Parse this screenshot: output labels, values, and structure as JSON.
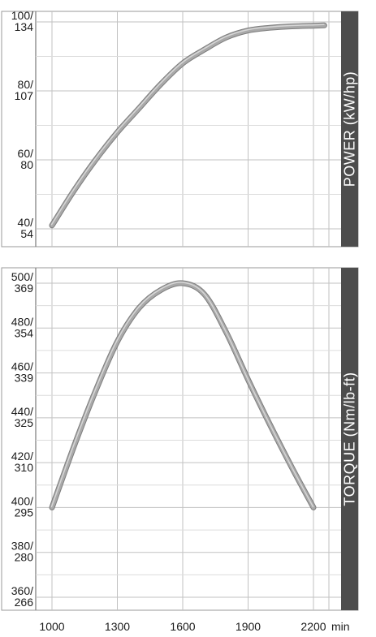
{
  "chart_data": [
    {
      "type": "line",
      "title": "",
      "ylabel": "POWER  (kW/hp)",
      "xlabel": "",
      "x_unit": "min",
      "x": [
        1000,
        1100,
        1200,
        1300,
        1400,
        1500,
        1600,
        1700,
        1800,
        1900,
        2000,
        2100,
        2200,
        2250
      ],
      "ylim": [
        38,
        101
      ],
      "y_ticks": [
        {
          "value": 40,
          "label": "40/",
          "label2": "54"
        },
        {
          "value": 60,
          "label": "60/",
          "label2": "80"
        },
        {
          "value": 80,
          "label": "80/",
          "label2": "107"
        },
        {
          "value": 100,
          "label": "100/",
          "label2": "134"
        }
      ],
      "grid": true,
      "series": [
        {
          "name": "",
          "color": "#a9a9a9",
          "values": [
            41,
            51,
            60,
            68,
            75,
            82,
            88,
            92,
            95.5,
            97.5,
            98.3,
            98.7,
            98.9,
            99
          ]
        }
      ]
    },
    {
      "type": "line",
      "title": "",
      "ylabel": "TORQUE  (Nm/lb-ft)",
      "xlabel": "",
      "x_unit": "min",
      "x": [
        1000,
        1100,
        1200,
        1300,
        1400,
        1500,
        1600,
        1700,
        1800,
        1900,
        2000,
        2100,
        2200
      ],
      "ylim": [
        357,
        501
      ],
      "y_ticks": [
        {
          "value": 360,
          "label": "360/",
          "label2": "266"
        },
        {
          "value": 380,
          "label": "380/",
          "label2": "280"
        },
        {
          "value": 400,
          "label": "400/",
          "label2": "295"
        },
        {
          "value": 420,
          "label": "420/",
          "label2": "310"
        },
        {
          "value": 440,
          "label": "440/",
          "label2": "325"
        },
        {
          "value": 460,
          "label": "460/",
          "label2": "339"
        },
        {
          "value": 480,
          "label": "480/",
          "label2": "354"
        },
        {
          "value": 500,
          "label": "500/",
          "label2": "369"
        }
      ],
      "grid": true,
      "series": [
        {
          "name": "",
          "color": "#a9a9a9",
          "values": [
            400,
            427,
            452,
            474,
            489,
            497,
            500,
            495,
            478,
            457,
            437,
            418,
            400
          ]
        }
      ]
    }
  ],
  "x_axis": {
    "ticks": [
      {
        "value": 1000,
        "label": "1000"
      },
      {
        "value": 1300,
        "label": "1300"
      },
      {
        "value": 1600,
        "label": "1600"
      },
      {
        "value": 1900,
        "label": "1900"
      },
      {
        "value": 2200,
        "label": "2200"
      }
    ],
    "unit_label": "min"
  },
  "colors": {
    "band": "#4d4d4d",
    "grid": "#c2c2c2",
    "curve": "#a9a9a9"
  }
}
